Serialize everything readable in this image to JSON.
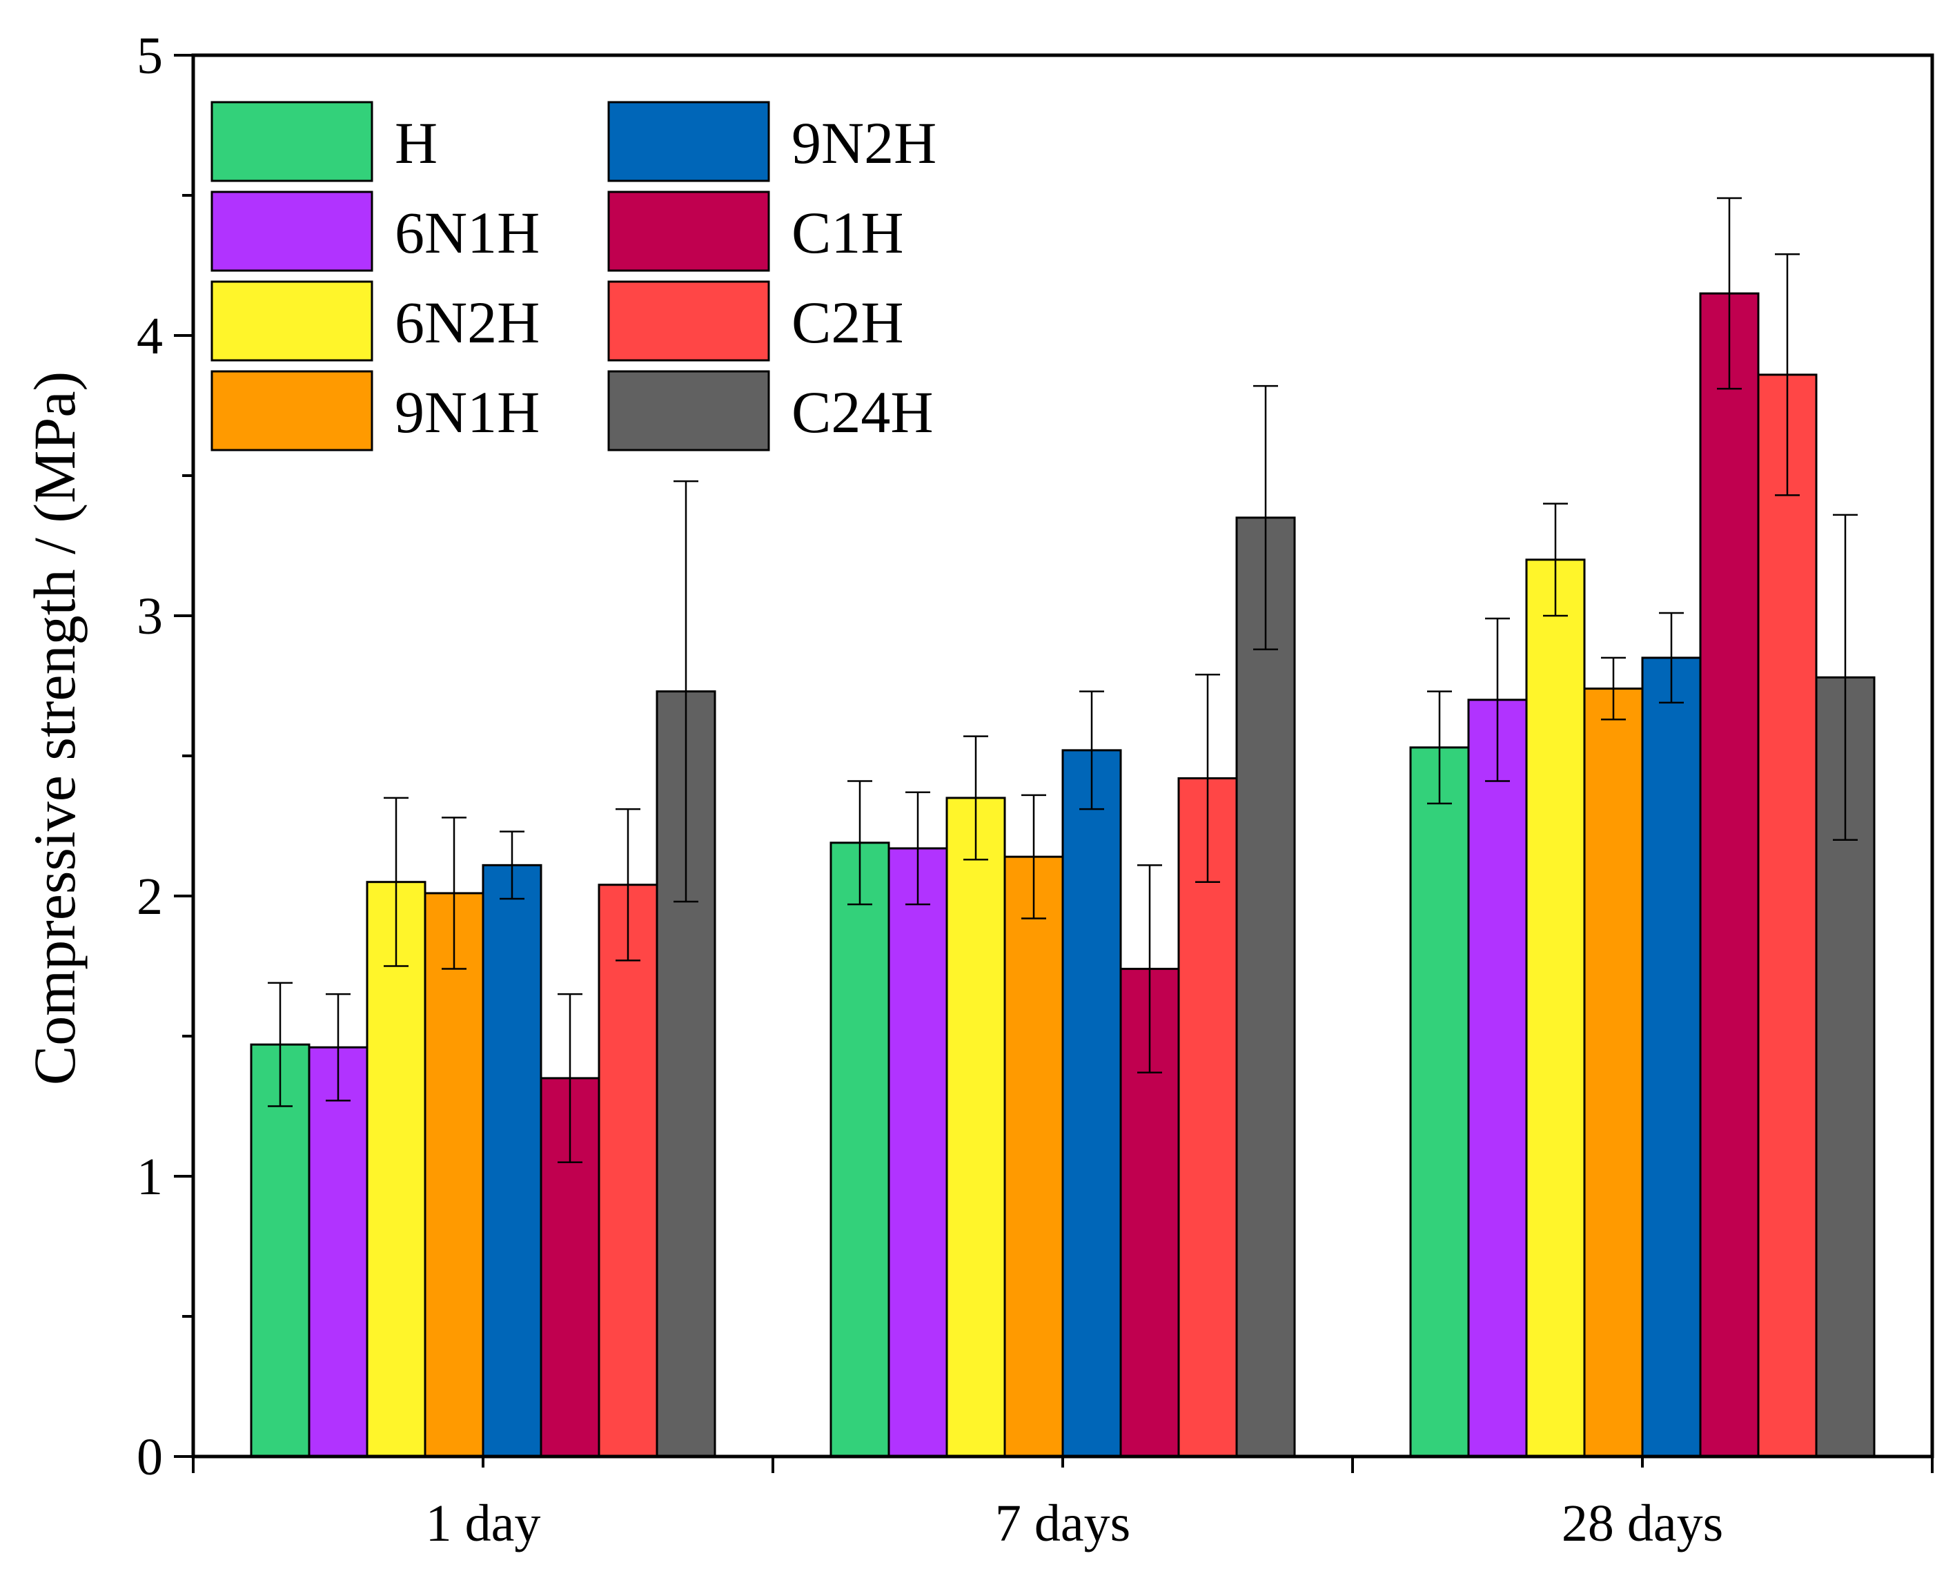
{
  "chart_data": {
    "type": "bar",
    "title": "",
    "xlabel": "",
    "ylabel": "Compressive strength / (MPa)",
    "ylim": [
      0,
      5
    ],
    "yticks": [
      "0",
      "1",
      "2",
      "3",
      "4",
      "5"
    ],
    "categories": [
      "1 day",
      "7 days",
      "28 days"
    ],
    "series": [
      {
        "name": "H",
        "color": "#33D17A",
        "values": [
          1.47,
          2.19,
          2.53
        ],
        "errors": [
          0.22,
          0.22,
          0.2
        ]
      },
      {
        "name": "6N1H",
        "color": "#B133FF",
        "values": [
          1.46,
          2.17,
          2.7
        ],
        "errors": [
          0.19,
          0.2,
          0.29
        ]
      },
      {
        "name": "6N2H",
        "color": "#FFF52A",
        "values": [
          2.05,
          2.35,
          3.2
        ],
        "errors": [
          0.3,
          0.22,
          0.2
        ]
      },
      {
        "name": "9N1H",
        "color": "#FF9A00",
        "values": [
          2.01,
          2.14,
          2.74
        ],
        "errors": [
          0.27,
          0.22,
          0.11
        ]
      },
      {
        "name": "9N2H",
        "color": "#0066B8",
        "values": [
          2.11,
          2.52,
          2.85
        ],
        "errors": [
          0.12,
          0.21,
          0.16
        ]
      },
      {
        "name": "C1H",
        "color": "#C0004F",
        "values": [
          1.35,
          1.74,
          4.15
        ],
        "errors": [
          0.3,
          0.37,
          0.34
        ]
      },
      {
        "name": "C2H",
        "color": "#FF4646",
        "values": [
          2.04,
          2.42,
          3.86
        ],
        "errors": [
          0.27,
          0.37,
          0.43
        ]
      },
      {
        "name": "C24H",
        "color": "#616161",
        "values": [
          2.73,
          3.35,
          2.78
        ],
        "errors": [
          0.75,
          0.47,
          0.58
        ]
      }
    ],
    "legend": {
      "placement": "top-left",
      "columns": 2
    }
  }
}
